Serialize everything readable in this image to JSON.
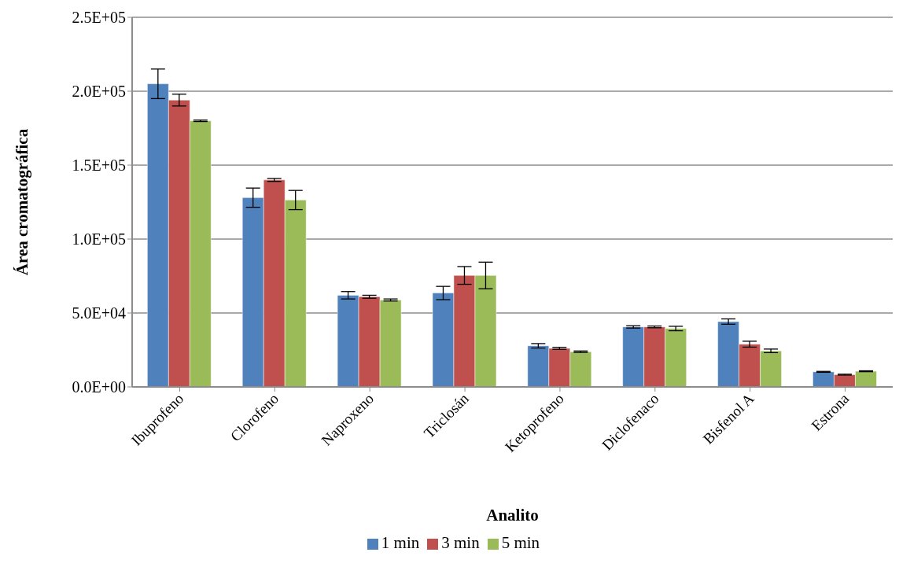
{
  "chart_data": {
    "type": "bar",
    "xlabel": "Analito",
    "ylabel": "Área cromatográfica",
    "categories": [
      "Ibuprofeno",
      "Clorofeno",
      "Naproxeno",
      "Triclosán",
      "Ketoprofeno",
      "Diclofenaco",
      "Bisfenol A",
      "Estrona"
    ],
    "series": [
      {
        "name": "1 min",
        "color": "#4f81bd",
        "values": [
          205000,
          128000,
          62000,
          63500,
          27800,
          40600,
          44200,
          10200
        ],
        "errors": [
          10000,
          6500,
          2500,
          4500,
          1500,
          800,
          1800,
          300
        ]
      },
      {
        "name": "3 min",
        "color": "#c0504d",
        "values": [
          194000,
          140000,
          61000,
          75400,
          26100,
          40600,
          28900,
          8300
        ],
        "errors": [
          4000,
          1000,
          1000,
          6000,
          700,
          600,
          2000,
          300
        ]
      },
      {
        "name": "5 min",
        "color": "#9bbb59",
        "values": [
          180000,
          126400,
          58800,
          75400,
          23800,
          39500,
          24400,
          10600
        ],
        "errors": [
          500,
          6500,
          700,
          9000,
          500,
          1500,
          1200,
          300
        ]
      }
    ],
    "ylim": [
      0,
      250000
    ],
    "yticks": [
      {
        "value": 0,
        "label": "0.0E+00"
      },
      {
        "value": 50000,
        "label": "5.0E+04"
      },
      {
        "value": 100000,
        "label": "1.0E+05"
      },
      {
        "value": 150000,
        "label": "1.5E+05"
      },
      {
        "value": 200000,
        "label": "2.0E+05"
      },
      {
        "value": 250000,
        "label": "2.5E+05"
      }
    ],
    "grid": "y",
    "legend": "bottom"
  }
}
